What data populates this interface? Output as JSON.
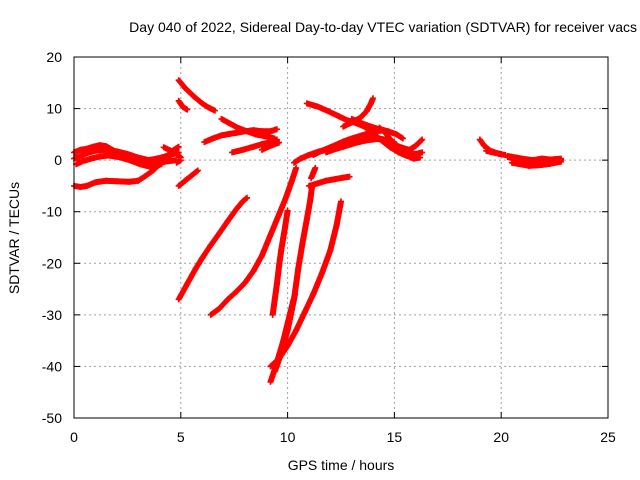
{
  "chart_data": {
    "type": "scatter",
    "title": "Day 040 of 2022, Sidereal Day-to-day VTEC variation (SDTVAR) for receiver vacs",
    "xlabel": "GPS time / hours",
    "ylabel": "SDTVAR / TECUs",
    "xlim": [
      0,
      25
    ],
    "ylim": [
      -50,
      20
    ],
    "x_ticks": [
      0,
      5,
      10,
      15,
      20,
      25
    ],
    "y_ticks": [
      20,
      10,
      0,
      -10,
      -20,
      -30,
      -40,
      -50
    ],
    "x_tick_labels": [
      "0",
      "5",
      "10",
      "15",
      "20",
      "25"
    ],
    "y_tick_labels": [
      "20",
      "10",
      "0",
      "-10",
      "-20",
      "-30",
      "-40",
      "-50"
    ],
    "grid": true,
    "marker": "plus",
    "series_color": "#ff0000",
    "segments": [
      [
        [
          0.0,
          -5.0
        ],
        [
          0.3,
          -5.2
        ],
        [
          0.6,
          -5.0
        ],
        [
          1.0,
          -4.3
        ],
        [
          1.5,
          -4.0
        ],
        [
          2.0,
          -4.1
        ],
        [
          2.6,
          -4.2
        ],
        [
          3.0,
          -4.0
        ],
        [
          3.3,
          -3.2
        ],
        [
          3.7,
          -2.0
        ],
        [
          4.0,
          -0.8
        ],
        [
          4.3,
          0.5
        ],
        [
          4.6,
          1.8
        ],
        [
          4.9,
          2.6
        ]
      ],
      [
        [
          0.0,
          1.5
        ],
        [
          0.3,
          2.0
        ],
        [
          0.6,
          2.2
        ],
        [
          0.9,
          2.6
        ],
        [
          1.2,
          2.9
        ],
        [
          1.5,
          2.7
        ],
        [
          1.8,
          2.0
        ],
        [
          2.2,
          1.0
        ],
        [
          2.7,
          0.2
        ],
        [
          3.2,
          -0.3
        ],
        [
          3.6,
          -0.6
        ],
        [
          4.0,
          -0.5
        ],
        [
          4.4,
          -0.2
        ],
        [
          4.8,
          0.0
        ]
      ],
      [
        [
          0.0,
          0.3
        ],
        [
          0.3,
          0.8
        ],
        [
          0.7,
          1.5
        ],
        [
          1.1,
          1.9
        ],
        [
          1.5,
          2.0
        ],
        [
          2.0,
          1.7
        ],
        [
          2.5,
          1.2
        ],
        [
          3.0,
          0.5
        ],
        [
          3.5,
          0.0
        ],
        [
          4.0,
          0.4
        ],
        [
          4.5,
          1.0
        ],
        [
          4.9,
          1.5
        ]
      ],
      [
        [
          0.1,
          -0.8
        ],
        [
          0.4,
          -0.2
        ],
        [
          0.8,
          0.3
        ],
        [
          1.2,
          0.7
        ],
        [
          1.6,
          0.9
        ],
        [
          2.1,
          0.6
        ],
        [
          2.6,
          0.0
        ],
        [
          3.1,
          -0.8
        ],
        [
          3.6,
          -1.3
        ],
        [
          4.1,
          -0.8
        ]
      ],
      [
        [
          4.2,
          2.5
        ],
        [
          4.5,
          1.9
        ],
        [
          4.8,
          1.2
        ],
        [
          5.0,
          0.5
        ]
      ],
      [
        [
          4.8,
          -0.5
        ],
        [
          5.0,
          0.0
        ]
      ],
      [
        [
          4.9,
          15.5
        ],
        [
          5.2,
          14.0
        ],
        [
          5.6,
          12.4
        ],
        [
          6.0,
          11.0
        ],
        [
          6.3,
          10.2
        ],
        [
          6.6,
          9.6
        ]
      ],
      [
        [
          4.9,
          11.5
        ],
        [
          5.1,
          10.3
        ],
        [
          5.3,
          9.8
        ]
      ],
      [
        [
          4.9,
          -5.0
        ],
        [
          5.2,
          -4.0
        ],
        [
          5.5,
          -3.0
        ],
        [
          5.8,
          -2.0
        ]
      ],
      [
        [
          4.9,
          -27.0
        ],
        [
          5.3,
          -24.0
        ],
        [
          5.7,
          -21.0
        ],
        [
          6.0,
          -19.0
        ],
        [
          6.4,
          -16.5
        ],
        [
          6.8,
          -14.2
        ],
        [
          7.2,
          -11.8
        ],
        [
          7.6,
          -9.5
        ],
        [
          7.9,
          -8.0
        ],
        [
          8.1,
          -7.3
        ]
      ],
      [
        [
          6.1,
          3.5
        ],
        [
          6.5,
          4.2
        ],
        [
          6.9,
          4.8
        ],
        [
          7.3,
          5.1
        ],
        [
          7.6,
          5.3
        ],
        [
          8.0,
          5.6
        ],
        [
          8.4,
          5.8
        ],
        [
          8.8,
          5.6
        ],
        [
          9.2,
          5.6
        ],
        [
          9.5,
          6.0
        ]
      ],
      [
        [
          6.9,
          8.0
        ],
        [
          7.3,
          7.1
        ],
        [
          7.7,
          6.2
        ],
        [
          8.1,
          5.6
        ],
        [
          8.5,
          5.0
        ],
        [
          9.0,
          4.6
        ],
        [
          9.4,
          4.2
        ]
      ],
      [
        [
          7.4,
          1.5
        ],
        [
          7.9,
          2.0
        ],
        [
          8.4,
          2.6
        ],
        [
          8.8,
          3.1
        ],
        [
          9.2,
          3.5
        ],
        [
          9.5,
          4.0
        ]
      ],
      [
        [
          8.8,
          2.0
        ],
        [
          9.1,
          2.6
        ],
        [
          9.4,
          3.1
        ],
        [
          9.6,
          3.4
        ]
      ],
      [
        [
          6.4,
          -30.0
        ],
        [
          6.8,
          -28.8
        ],
        [
          7.2,
          -27.0
        ],
        [
          7.6,
          -25.5
        ],
        [
          8.0,
          -23.8
        ],
        [
          8.4,
          -21.5
        ],
        [
          8.8,
          -18.5
        ],
        [
          9.2,
          -14.5
        ],
        [
          9.6,
          -10.5
        ],
        [
          9.9,
          -7.5
        ],
        [
          10.2,
          -4.0
        ],
        [
          10.4,
          -1.5
        ]
      ],
      [
        [
          9.3,
          -30.0
        ],
        [
          9.4,
          -27.0
        ],
        [
          9.5,
          -24.0
        ],
        [
          9.6,
          -20.5
        ],
        [
          9.7,
          -17.5
        ],
        [
          9.8,
          -15.0
        ],
        [
          9.9,
          -12.5
        ],
        [
          10.0,
          -9.8
        ]
      ],
      [
        [
          9.2,
          -43.0
        ],
        [
          9.4,
          -40.5
        ],
        [
          9.6,
          -37.8
        ],
        [
          9.8,
          -35.0
        ],
        [
          9.95,
          -32.5
        ],
        [
          10.1,
          -30.0
        ],
        [
          10.25,
          -27.5
        ],
        [
          10.35,
          -26.0
        ]
      ],
      [
        [
          9.4,
          -41.0
        ],
        [
          9.7,
          -37.5
        ],
        [
          10.0,
          -33.0
        ],
        [
          10.3,
          -27.0
        ],
        [
          10.5,
          -21.0
        ],
        [
          10.7,
          -16.0
        ],
        [
          10.9,
          -11.5
        ],
        [
          11.05,
          -8.0
        ],
        [
          11.15,
          -5.0
        ]
      ],
      [
        [
          9.2,
          -40.0
        ],
        [
          9.6,
          -38.5
        ],
        [
          10.0,
          -36.0
        ],
        [
          10.4,
          -33.0
        ],
        [
          10.8,
          -29.5
        ],
        [
          11.2,
          -26.0
        ],
        [
          11.6,
          -22.0
        ],
        [
          12.0,
          -17.5
        ],
        [
          12.3,
          -12.5
        ],
        [
          12.5,
          -8.0
        ]
      ],
      [
        [
          11.0,
          -5.0
        ],
        [
          11.4,
          -4.5
        ],
        [
          11.8,
          -4.0
        ],
        [
          12.2,
          -3.7
        ],
        [
          12.6,
          -3.4
        ],
        [
          12.9,
          -3.2
        ]
      ],
      [
        [
          11.1,
          -3.5
        ],
        [
          11.2,
          -2.5
        ],
        [
          11.3,
          -1.5
        ]
      ],
      [
        [
          10.3,
          -0.5
        ],
        [
          10.6,
          0.3
        ],
        [
          11.0,
          1.0
        ],
        [
          11.4,
          1.6
        ],
        [
          11.8,
          2.0
        ],
        [
          12.2,
          2.3
        ],
        [
          12.6,
          2.8
        ],
        [
          13.0,
          3.2
        ],
        [
          13.4,
          3.6
        ],
        [
          13.8,
          3.9
        ],
        [
          14.2,
          4.1
        ],
        [
          14.6,
          4.0
        ],
        [
          15.0,
          3.5
        ]
      ],
      [
        [
          11.2,
          1.0
        ],
        [
          11.6,
          1.8
        ],
        [
          12.0,
          2.5
        ],
        [
          12.4,
          3.2
        ],
        [
          12.8,
          3.8
        ],
        [
          13.2,
          4.3
        ],
        [
          13.6,
          4.6
        ],
        [
          14.0,
          4.5
        ],
        [
          14.4,
          4.0
        ]
      ],
      [
        [
          10.9,
          11.0
        ],
        [
          11.4,
          10.4
        ],
        [
          11.9,
          9.5
        ],
        [
          12.4,
          8.5
        ],
        [
          12.8,
          7.7
        ],
        [
          13.2,
          7.2
        ],
        [
          13.6,
          6.5
        ],
        [
          14.0,
          5.2
        ],
        [
          14.4,
          3.8
        ],
        [
          14.8,
          2.5
        ],
        [
          15.2,
          1.5
        ],
        [
          15.6,
          0.8
        ]
      ],
      [
        [
          11.9,
          2.0
        ],
        [
          12.2,
          2.8
        ],
        [
          12.6,
          3.6
        ],
        [
          13.0,
          4.2
        ],
        [
          13.4,
          4.7
        ],
        [
          13.8,
          5.2
        ],
        [
          14.2,
          5.6
        ],
        [
          14.5,
          5.8
        ],
        [
          14.7,
          5.3
        ]
      ],
      [
        [
          11.8,
          1.5
        ],
        [
          12.2,
          2.1
        ],
        [
          12.6,
          2.6
        ],
        [
          13.0,
          3.1
        ],
        [
          13.4,
          3.6
        ],
        [
          13.8,
          4.1
        ],
        [
          14.2,
          4.3
        ],
        [
          14.5,
          4.0
        ],
        [
          14.8,
          3.4
        ]
      ],
      [
        [
          12.6,
          6.5
        ],
        [
          13.0,
          7.3
        ],
        [
          13.4,
          8.2
        ],
        [
          13.7,
          9.5
        ],
        [
          13.9,
          11.0
        ],
        [
          14.0,
          12.0
        ]
      ],
      [
        [
          13.0,
          8.0
        ],
        [
          13.5,
          7.1
        ],
        [
          13.9,
          6.5
        ],
        [
          14.3,
          6.0
        ],
        [
          14.7,
          5.6
        ],
        [
          15.1,
          5.0
        ],
        [
          15.4,
          4.2
        ]
      ],
      [
        [
          14.3,
          6.3
        ],
        [
          14.6,
          5.2
        ],
        [
          14.9,
          3.5
        ],
        [
          15.2,
          2.0
        ],
        [
          15.5,
          1.0
        ],
        [
          15.9,
          0.3
        ],
        [
          16.2,
          0.5
        ]
      ],
      [
        [
          15.0,
          3.0
        ],
        [
          15.3,
          2.5
        ],
        [
          15.7,
          2.0
        ],
        [
          16.0,
          2.8
        ],
        [
          16.3,
          4.0
        ]
      ],
      [
        [
          15.2,
          2.0
        ],
        [
          15.6,
          1.5
        ],
        [
          16.0,
          1.2
        ],
        [
          16.3,
          1.5
        ]
      ],
      [
        [
          19.0,
          4.0
        ],
        [
          19.2,
          2.8
        ],
        [
          19.5,
          1.8
        ],
        [
          19.9,
          1.2
        ],
        [
          20.2,
          1.0
        ]
      ],
      [
        [
          19.3,
          1.8
        ],
        [
          19.6,
          1.5
        ],
        [
          20.0,
          1.2
        ]
      ],
      [
        [
          20.3,
          0.6
        ],
        [
          20.7,
          0.3
        ],
        [
          21.1,
          -0.3
        ],
        [
          21.5,
          -0.6
        ],
        [
          21.9,
          -0.9
        ],
        [
          22.3,
          -0.7
        ],
        [
          22.8,
          -0.2
        ]
      ],
      [
        [
          20.5,
          -0.5
        ],
        [
          20.9,
          -0.8
        ],
        [
          21.3,
          -1.1
        ],
        [
          21.7,
          -1.0
        ],
        [
          22.1,
          -0.8
        ],
        [
          22.5,
          -0.5
        ],
        [
          22.8,
          -0.3
        ]
      ],
      [
        [
          20.3,
          0.8
        ],
        [
          20.7,
          0.5
        ],
        [
          21.1,
          0.2
        ],
        [
          21.5,
          0.0
        ],
        [
          21.9,
          0.3
        ],
        [
          22.3,
          0.1
        ],
        [
          22.8,
          0.3
        ]
      ],
      [
        [
          20.5,
          0.1
        ],
        [
          21.0,
          -0.4
        ],
        [
          21.5,
          -0.2
        ],
        [
          22.0,
          -0.6
        ],
        [
          22.5,
          0.0
        ],
        [
          22.8,
          0.1
        ]
      ]
    ]
  }
}
